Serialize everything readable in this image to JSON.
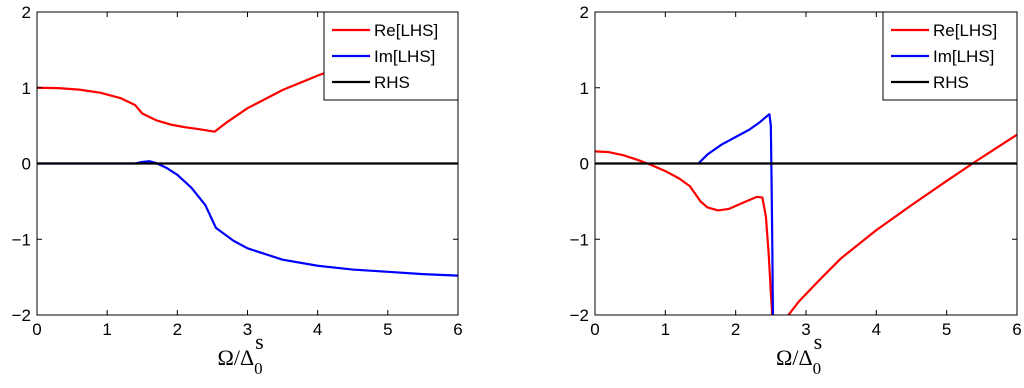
{
  "chart_data": [
    {
      "type": "line",
      "title": "",
      "xlabel": "Ω/Δ",
      "xlabel_sub": "0",
      "xlabel_sup": "s",
      "ylabel": "",
      "xlim": [
        0,
        6
      ],
      "ylim": [
        -2,
        2
      ],
      "xticks": [
        0,
        1,
        2,
        3,
        4,
        5,
        6
      ],
      "yticks": [
        -2,
        -1,
        0,
        1,
        2
      ],
      "grid": false,
      "legend_position": "top-right",
      "series": [
        {
          "name": "Re[LHS]",
          "color": "#ff0000",
          "segments": [
            [
              [
                0,
                1.0
              ],
              [
                0.3,
                0.995
              ],
              [
                0.6,
                0.975
              ],
              [
                0.9,
                0.935
              ],
              [
                1.2,
                0.86
              ],
              [
                1.4,
                0.77
              ],
              [
                1.5,
                0.66
              ],
              [
                1.7,
                0.57
              ],
              [
                1.9,
                0.515
              ],
              [
                2.1,
                0.48
              ],
              [
                2.3,
                0.455
              ],
              [
                2.53,
                0.42
              ],
              [
                2.7,
                0.54
              ],
              [
                3.0,
                0.73
              ],
              [
                3.5,
                0.97
              ],
              [
                4.0,
                1.16
              ],
              [
                4.5,
                1.33
              ],
              [
                5.0,
                1.47
              ],
              [
                5.5,
                1.57
              ],
              [
                6.0,
                1.66
              ]
            ]
          ]
        },
        {
          "name": "Im[LHS]",
          "color": "#0000ff",
          "segments": [
            [
              [
                0,
                0.0
              ],
              [
                1.4,
                0.0
              ],
              [
                1.5,
                0.02
              ],
              [
                1.6,
                0.03
              ],
              [
                1.7,
                0.005
              ],
              [
                1.85,
                -0.06
              ],
              [
                2.0,
                -0.15
              ],
              [
                2.2,
                -0.32
              ],
              [
                2.4,
                -0.55
              ],
              [
                2.55,
                -0.85
              ],
              [
                2.8,
                -1.02
              ],
              [
                3.0,
                -1.12
              ],
              [
                3.5,
                -1.27
              ],
              [
                4.0,
                -1.35
              ],
              [
                4.5,
                -1.4
              ],
              [
                5.0,
                -1.43
              ],
              [
                5.5,
                -1.46
              ],
              [
                6.0,
                -1.48
              ]
            ]
          ]
        },
        {
          "name": "RHS",
          "color": "#000000",
          "segments": [
            [
              [
                0,
                0
              ],
              [
                6,
                0
              ]
            ]
          ]
        }
      ]
    },
    {
      "type": "line",
      "title": "",
      "xlabel": "Ω/Δ",
      "xlabel_sub": "0",
      "xlabel_sup": "s",
      "ylabel": "",
      "xlim": [
        0,
        6
      ],
      "ylim": [
        -2,
        2
      ],
      "xticks": [
        0,
        1,
        2,
        3,
        4,
        5,
        6
      ],
      "yticks": [
        -2,
        -1,
        0,
        1,
        2
      ],
      "grid": false,
      "legend_position": "top-right",
      "series": [
        {
          "name": "Re[LHS]",
          "color": "#ff0000",
          "segments": [
            [
              [
                0,
                0.16
              ],
              [
                0.2,
                0.15
              ],
              [
                0.4,
                0.11
              ],
              [
                0.6,
                0.05
              ],
              [
                0.8,
                -0.02
              ],
              [
                1.0,
                -0.1
              ],
              [
                1.2,
                -0.2
              ],
              [
                1.35,
                -0.3
              ],
              [
                1.5,
                -0.5
              ],
              [
                1.6,
                -0.58
              ],
              [
                1.75,
                -0.62
              ],
              [
                1.9,
                -0.6
              ],
              [
                2.1,
                -0.52
              ],
              [
                2.3,
                -0.44
              ],
              [
                2.38,
                -0.45
              ],
              [
                2.43,
                -0.7
              ],
              [
                2.47,
                -1.2
              ],
              [
                2.5,
                -1.7
              ],
              [
                2.52,
                -2.0
              ]
            ],
            [
              [
                2.75,
                -2.0
              ],
              [
                2.9,
                -1.82
              ],
              [
                3.2,
                -1.53
              ],
              [
                3.5,
                -1.25
              ],
              [
                4.0,
                -0.88
              ],
              [
                4.5,
                -0.55
              ],
              [
                5.0,
                -0.23
              ],
              [
                5.4,
                0.02
              ],
              [
                5.7,
                0.2
              ],
              [
                6.0,
                0.38
              ]
            ]
          ]
        },
        {
          "name": "Im[LHS]",
          "color": "#0000ff",
          "segments": [
            [
              [
                1.47,
                0.0
              ],
              [
                1.6,
                0.12
              ],
              [
                1.8,
                0.25
              ],
              [
                2.0,
                0.35
              ],
              [
                2.2,
                0.45
              ],
              [
                2.35,
                0.55
              ],
              [
                2.45,
                0.63
              ],
              [
                2.48,
                0.65
              ],
              [
                2.5,
                0.5
              ],
              [
                2.51,
                -0.2
              ],
              [
                2.52,
                -1.0
              ],
              [
                2.53,
                -2.0
              ]
            ]
          ]
        },
        {
          "name": "RHS",
          "color": "#000000",
          "segments": [
            [
              [
                0,
                0
              ],
              [
                6,
                0
              ]
            ]
          ]
        }
      ]
    }
  ]
}
